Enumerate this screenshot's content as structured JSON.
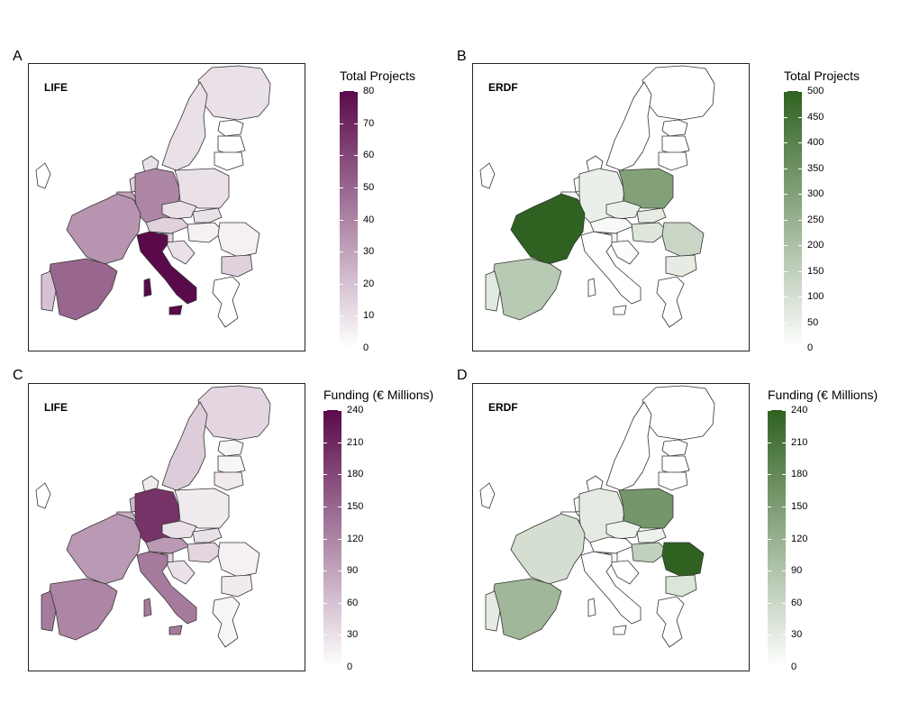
{
  "panels": [
    {
      "letter": "A",
      "title": "LIFE",
      "legend_title": "Total Projects",
      "colormap": "purple",
      "max": 80,
      "ticks": [
        "0",
        "10",
        "20",
        "30",
        "40",
        "50",
        "60",
        "70",
        "80"
      ],
      "values": {
        "portugal": 20,
        "spain": 50,
        "france": 35,
        "italy": 80,
        "germany": 40,
        "uk": 0,
        "ireland": 0,
        "poland": 10,
        "romania": 5,
        "greece": 0,
        "sweden": 10,
        "finland": 10,
        "belgium": 30,
        "netherlands": 15,
        "austria": 15,
        "czechia": 10,
        "hungary": 5,
        "bulgaria": 15,
        "slovenia": 15,
        "croatia": 10,
        "slovakia": 10,
        "latvia": 0,
        "lithuania": 0,
        "estonia": 0,
        "denmark": 10
      }
    },
    {
      "letter": "B",
      "title": "ERDF",
      "legend_title": "Total Projects",
      "colormap": "green",
      "max": 500,
      "ticks": [
        "0",
        "50",
        "100",
        "150",
        "200",
        "250",
        "300",
        "350",
        "400",
        "450",
        "500"
      ],
      "values": {
        "portugal": 70,
        "spain": 170,
        "france": 500,
        "italy": 0,
        "germany": 50,
        "uk": 0,
        "ireland": 0,
        "poland": 300,
        "romania": 130,
        "greece": 0,
        "sweden": 0,
        "finland": 0,
        "belgium": 30,
        "netherlands": 20,
        "austria": 20,
        "czechia": 50,
        "hungary": 80,
        "bulgaria": 60,
        "slovenia": 10,
        "croatia": 10,
        "slovakia": 60,
        "latvia": 0,
        "lithuania": 0,
        "estonia": 0,
        "denmark": 0
      }
    },
    {
      "letter": "C",
      "title": "LIFE",
      "legend_title": "Funding (€ Millions)",
      "colormap": "purple",
      "max": 240,
      "ticks": [
        "0",
        "30",
        "60",
        "90",
        "120",
        "150",
        "180",
        "210",
        "240"
      ],
      "values": {
        "portugal": 130,
        "spain": 120,
        "france": 100,
        "italy": 130,
        "germany": 200,
        "uk": 0,
        "ireland": 0,
        "poland": 20,
        "romania": 15,
        "greece": 10,
        "sweden": 50,
        "finland": 40,
        "belgium": 80,
        "netherlands": 70,
        "austria": 100,
        "czechia": 30,
        "hungary": 40,
        "bulgaria": 20,
        "slovenia": 40,
        "croatia": 30,
        "slovakia": 30,
        "latvia": 10,
        "lithuania": 20,
        "estonia": 10,
        "denmark": 20
      }
    },
    {
      "letter": "D",
      "title": "ERDF",
      "legend_title": "Funding (€ Millions)",
      "colormap": "green",
      "max": 240,
      "ticks": [
        "0",
        "30",
        "60",
        "90",
        "120",
        "150",
        "180",
        "210",
        "240"
      ],
      "values": {
        "portugal": 30,
        "spain": 110,
        "france": 50,
        "italy": 0,
        "germany": 30,
        "uk": 0,
        "ireland": 0,
        "poland": 160,
        "romania": 240,
        "greece": 0,
        "sweden": 0,
        "finland": 0,
        "belgium": 0,
        "netherlands": 10,
        "austria": 0,
        "czechia": 20,
        "hungary": 70,
        "bulgaria": 40,
        "slovenia": 0,
        "croatia": 0,
        "slovakia": 20,
        "latvia": 0,
        "lithuania": 0,
        "estonia": 0,
        "denmark": 0
      }
    }
  ],
  "colors": {
    "purple_low": "#ffffff",
    "purple_high": "#5a0a4a",
    "green_low": "#ffffff",
    "green_high": "#2f6220",
    "border": "#333333"
  }
}
